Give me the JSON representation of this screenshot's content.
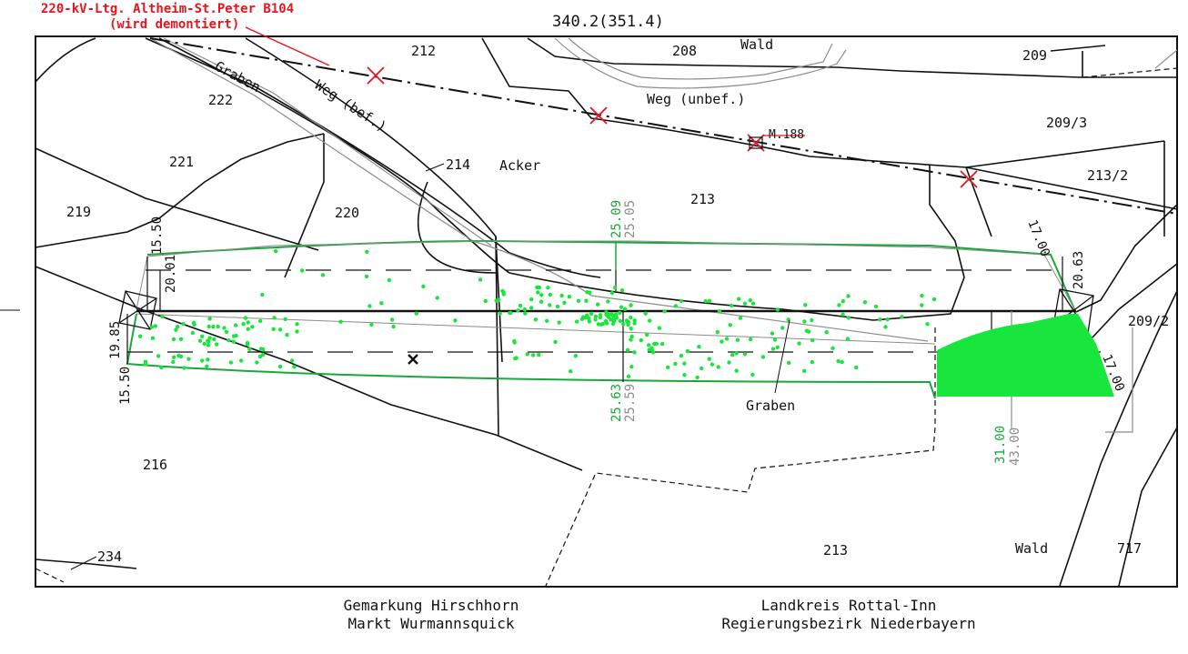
{
  "header": {
    "line_label_1": "220-kV-Ltg. Altheim-St.Peter B104",
    "line_label_2": "(wird demontiert)",
    "station": "340.2(351.4)"
  },
  "parcels": {
    "p212": "212",
    "p208": "208",
    "p209": "209",
    "p209_3": "209/3",
    "p213_2": "213/2",
    "p209_2": "209/2",
    "p222": "222",
    "p221": "221",
    "p219": "219",
    "p220": "220",
    "p214": "214",
    "p213_top": "213",
    "p216": "216",
    "p213_bottom": "213",
    "p717": "717",
    "p234": "234"
  },
  "land_use": {
    "wald_top": "Wald",
    "weg_unbef": "Weg (unbef.)",
    "weg_bef": "Weg (bef.)",
    "graben_top": "Graben",
    "acker": "Acker",
    "graben_bottom": "Graben",
    "wald_bottom": "Wald",
    "mast": "M.188"
  },
  "dimensions": {
    "left_top": "15.50",
    "left_top_inner": "20.01",
    "left_bottom_1": "19.85",
    "left_bottom_2": "15.50",
    "mid_top_green": "25.09",
    "mid_top_grey": "25.05",
    "mid_bottom_green": "25.63",
    "mid_bottom_grey": "25.59",
    "right_top_1": "17.00",
    "right_top_2": "20.63",
    "right_bottom": "17.00",
    "right_green": "31.00",
    "right_grey": "43.00"
  },
  "footer": {
    "left_line1": "Gemarkung Hirschhorn",
    "left_line2": "Markt Wurmannsquick",
    "right_line1": "Landkreis Rottal-Inn",
    "right_line2": "Regierungsbezirk Niederbayern"
  },
  "colors": {
    "vegetation": "#19e63c",
    "dimension_green": "#1aa83a",
    "old_line": "#e8141e",
    "grey": "#8c8c8c"
  }
}
